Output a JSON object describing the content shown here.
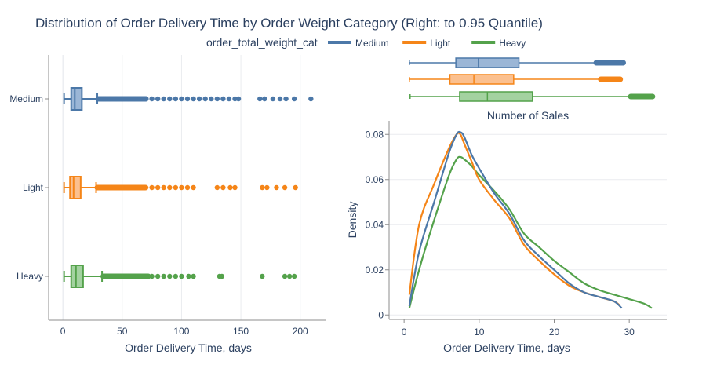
{
  "title": "Distribution of Order Delivery Time by Order Weight Category (Right: to 0.95 Quantile)",
  "legend": {
    "title": "order_total_weight_cat",
    "items": [
      {
        "label": "Medium",
        "color": "#4c78a8"
      },
      {
        "label": "Light",
        "color": "#f58518"
      },
      {
        "label": "Heavy",
        "color": "#54a24b"
      }
    ]
  },
  "colors": {
    "Medium": {
      "line": "#4c78a8",
      "fill": "#9bb6d6"
    },
    "Light": {
      "line": "#f58518",
      "fill": "#fbc08f"
    },
    "Heavy": {
      "line": "#54a24b",
      "fill": "#a3d2a0"
    }
  },
  "chart_data": [
    {
      "type": "box",
      "orientation": "horizontal",
      "xlabel": "Order Delivery Time, days",
      "xlim": [
        -12,
        222
      ],
      "xticks": [
        0,
        50,
        100,
        150,
        200
      ],
      "categories": [
        "Medium",
        "Light",
        "Heavy"
      ],
      "grid": true,
      "series": [
        {
          "name": "Medium",
          "min": 1,
          "q1": 7,
          "median": 10,
          "q3": 16,
          "whisker_high": 29,
          "outliers": [
            30,
            35,
            40,
            45,
            50,
            55,
            60,
            65,
            70,
            75,
            80,
            85,
            90,
            95,
            100,
            105,
            110,
            115,
            120,
            125,
            130,
            135,
            140,
            145,
            148,
            166,
            170,
            177,
            183,
            188,
            195,
            209
          ]
        },
        {
          "name": "Light",
          "min": 1,
          "q1": 6,
          "median": 9,
          "q3": 15,
          "whisker_high": 28,
          "outliers": [
            29,
            35,
            40,
            45,
            50,
            55,
            60,
            65,
            70,
            75,
            80,
            85,
            90,
            95,
            100,
            105,
            110,
            130,
            135,
            141,
            145,
            168,
            172,
            180,
            187,
            196
          ]
        },
        {
          "name": "Heavy",
          "min": 1,
          "q1": 7,
          "median": 11,
          "q3": 17,
          "whisker_high": 33,
          "outliers": [
            34,
            38,
            42,
            46,
            50,
            55,
            60,
            65,
            70,
            75,
            80,
            85,
            90,
            95,
            100,
            106,
            110,
            132,
            134,
            168,
            187,
            191,
            195
          ]
        }
      ]
    },
    {
      "type": "box",
      "orientation": "horizontal",
      "xlim": [
        -2,
        35
      ],
      "categories": [
        "Medium",
        "Light",
        "Heavy"
      ],
      "series": [
        {
          "name": "Medium",
          "min": 0.7,
          "q1": 6.9,
          "median": 9.9,
          "q3": 15.3,
          "whisker_high": 29.2,
          "outliers_from": 25.6
        },
        {
          "name": "Light",
          "min": 0.7,
          "q1": 6.1,
          "median": 9.3,
          "q3": 14.6,
          "whisker_high": 28.8,
          "outliers_from": 26.2
        },
        {
          "name": "Heavy",
          "min": 0.8,
          "q1": 7.4,
          "median": 11.1,
          "q3": 17.1,
          "whisker_high": 33.1,
          "outliers_from": 30.2
        }
      ]
    },
    {
      "type": "line",
      "title": "Number of Sales",
      "xlabel": "Order Delivery Time, days",
      "ylabel": "Density",
      "xlim": [
        -2,
        35
      ],
      "ylim": [
        -0.002,
        0.086
      ],
      "xticks": [
        0,
        10,
        20,
        30
      ],
      "yticks": [
        0,
        0.02,
        0.04,
        0.06,
        0.08
      ],
      "grid": true,
      "series": [
        {
          "name": "Medium",
          "x": [
            0.7,
            2,
            4,
            6,
            7,
            7.5,
            8,
            9,
            10,
            12,
            14,
            16,
            18,
            20,
            22,
            24,
            26,
            28,
            29
          ],
          "y": [
            0.004,
            0.028,
            0.05,
            0.072,
            0.08,
            0.081,
            0.079,
            0.071,
            0.065,
            0.054,
            0.045,
            0.033,
            0.026,
            0.02,
            0.014,
            0.01,
            0.008,
            0.006,
            0.003
          ]
        },
        {
          "name": "Light",
          "x": [
            0.7,
            2,
            4,
            6,
            7,
            7.5,
            8,
            9,
            10,
            12,
            14,
            16,
            18,
            20,
            22,
            24,
            26,
            28,
            28.8
          ],
          "y": [
            0.009,
            0.04,
            0.058,
            0.074,
            0.08,
            0.08,
            0.076,
            0.068,
            0.06,
            0.051,
            0.043,
            0.031,
            0.024,
            0.018,
            0.013,
            0.01,
            0.008,
            0.006,
            0.004
          ]
        },
        {
          "name": "Heavy",
          "x": [
            0.7,
            2,
            4,
            6,
            7,
            7.5,
            8,
            9,
            10,
            12,
            14,
            16,
            18,
            20,
            22,
            24,
            26,
            28,
            30,
            32,
            33
          ],
          "y": [
            0.003,
            0.02,
            0.042,
            0.062,
            0.069,
            0.07,
            0.069,
            0.066,
            0.062,
            0.055,
            0.047,
            0.036,
            0.03,
            0.024,
            0.019,
            0.014,
            0.011,
            0.009,
            0.007,
            0.005,
            0.003
          ]
        }
      ]
    }
  ]
}
